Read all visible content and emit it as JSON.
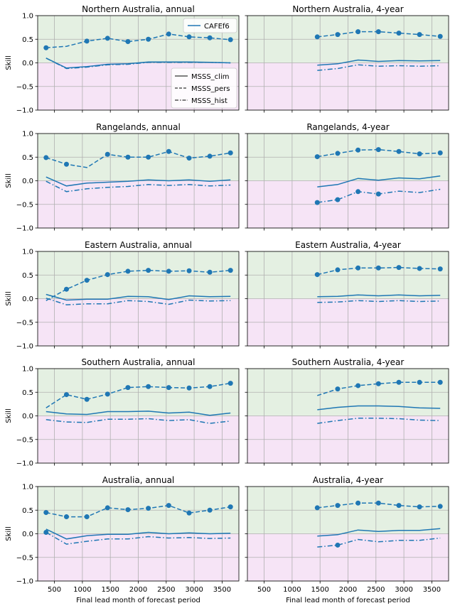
{
  "figure": {
    "xlabel": "Final lead month of forecast period",
    "ylabel": "Skill",
    "xlim": [
      200,
      3800
    ],
    "ylim": [
      -1.0,
      1.0
    ],
    "xticks": [
      "500",
      "1000",
      "1500",
      "2000",
      "2500",
      "3000",
      "3500"
    ],
    "xtick_values": [
      500,
      1000,
      1500,
      2000,
      2500,
      3000,
      3500
    ],
    "yticks": [
      "1.0",
      "0.5",
      "0.0",
      "−0.5",
      "−1.0"
    ],
    "ytick_values": [
      1.0,
      0.5,
      0.0,
      -0.5,
      -1.0
    ],
    "positive_shade": "#e4f0e2",
    "negative_shade": "#f6e4f6",
    "series_color": "#1f77b4",
    "grid": true,
    "legend_model": {
      "label": "CAFEf6",
      "placement": "upper right",
      "panel": 0
    },
    "legend_metrics": {
      "entries": [
        "MSSS_clim",
        "MSSS_pers",
        "MSSS_hist"
      ],
      "placement": "lower right",
      "panel": 0
    }
  },
  "chart_data": [
    {
      "type": "line",
      "title": "Northern Australia, annual",
      "x": [
        350,
        715,
        1080,
        1450,
        1815,
        2180,
        2545,
        2910,
        3280,
        3650
      ],
      "series": [
        {
          "name": "MSSS_clim",
          "style": "solid",
          "values": [
            0.1,
            -0.11,
            -0.08,
            -0.03,
            -0.02,
            0.02,
            0.02,
            0.02,
            0.01,
            0.0
          ]
        },
        {
          "name": "MSSS_pers",
          "style": "dashed",
          "values": [
            0.32,
            0.35,
            0.46,
            0.52,
            0.45,
            0.5,
            0.61,
            0.55,
            0.53,
            0.49
          ],
          "markers": [
            0,
            2,
            3,
            4,
            5,
            6,
            7,
            8,
            9
          ]
        },
        {
          "name": "MSSS_hist",
          "style": "dashdot",
          "values": [
            0.1,
            -0.12,
            -0.09,
            -0.04,
            -0.03,
            0.01,
            0.01,
            0.01,
            0.01,
            0.0
          ]
        }
      ]
    },
    {
      "type": "line",
      "title": "Northern Australia, 4-year",
      "x": [
        1450,
        1815,
        2180,
        2545,
        2910,
        3280,
        3650
      ],
      "series": [
        {
          "name": "MSSS_clim",
          "style": "solid",
          "values": [
            -0.05,
            -0.02,
            0.06,
            0.03,
            0.05,
            0.04,
            0.05
          ]
        },
        {
          "name": "MSSS_pers",
          "style": "dashed",
          "values": [
            0.55,
            0.6,
            0.66,
            0.66,
            0.63,
            0.6,
            0.56
          ],
          "markers": [
            0,
            1,
            2,
            3,
            4,
            5,
            6
          ]
        },
        {
          "name": "MSSS_hist",
          "style": "dashdot",
          "values": [
            -0.16,
            -0.12,
            -0.04,
            -0.07,
            -0.06,
            -0.07,
            -0.06
          ]
        }
      ]
    },
    {
      "type": "line",
      "title": "Rangelands, annual",
      "x": [
        350,
        715,
        1080,
        1450,
        1815,
        2180,
        2545,
        2910,
        3280,
        3650
      ],
      "series": [
        {
          "name": "MSSS_clim",
          "style": "solid",
          "values": [
            0.08,
            -0.11,
            -0.05,
            -0.03,
            -0.01,
            0.02,
            0.0,
            0.02,
            -0.01,
            0.02
          ]
        },
        {
          "name": "MSSS_pers",
          "style": "dashed",
          "values": [
            0.49,
            0.35,
            0.28,
            0.56,
            0.5,
            0.5,
            0.62,
            0.48,
            0.52,
            0.59
          ],
          "markers": [
            0,
            1,
            3,
            4,
            5,
            6,
            7,
            8,
            9
          ]
        },
        {
          "name": "MSSS_hist",
          "style": "dashdot",
          "values": [
            -0.01,
            -0.23,
            -0.17,
            -0.14,
            -0.12,
            -0.08,
            -0.1,
            -0.08,
            -0.11,
            -0.09
          ]
        }
      ]
    },
    {
      "type": "line",
      "title": "Rangelands, 4-year",
      "x": [
        1450,
        1815,
        2180,
        2545,
        2910,
        3280,
        3650
      ],
      "series": [
        {
          "name": "MSSS_clim",
          "style": "solid",
          "values": [
            -0.13,
            -0.08,
            0.05,
            0.01,
            0.06,
            0.04,
            0.1
          ]
        },
        {
          "name": "MSSS_pers",
          "style": "dashed",
          "values": [
            0.51,
            0.58,
            0.65,
            0.66,
            0.62,
            0.57,
            0.59
          ],
          "markers": [
            0,
            1,
            2,
            3,
            4,
            5,
            6
          ]
        },
        {
          "name": "MSSS_hist",
          "style": "dashdot",
          "values": [
            -0.46,
            -0.4,
            -0.23,
            -0.28,
            -0.22,
            -0.25,
            -0.18
          ],
          "markers": [
            0,
            1,
            2,
            3
          ]
        }
      ]
    },
    {
      "type": "line",
      "title": "Eastern Australia, annual",
      "x": [
        350,
        715,
        1080,
        1450,
        1815,
        2180,
        2545,
        2910,
        3280,
        3650
      ],
      "series": [
        {
          "name": "MSSS_clim",
          "style": "solid",
          "values": [
            0.09,
            -0.03,
            -0.01,
            -0.01,
            0.05,
            0.04,
            -0.02,
            0.06,
            0.04,
            0.05
          ]
        },
        {
          "name": "MSSS_pers",
          "style": "dashed",
          "values": [
            -0.04,
            0.2,
            0.39,
            0.51,
            0.58,
            0.6,
            0.58,
            0.59,
            0.56,
            0.6
          ],
          "markers": [
            1,
            2,
            3,
            4,
            5,
            6,
            7,
            8,
            9
          ]
        },
        {
          "name": "MSSS_hist",
          "style": "dashdot",
          "values": [
            0.01,
            -0.13,
            -0.11,
            -0.11,
            -0.04,
            -0.06,
            -0.12,
            -0.03,
            -0.05,
            -0.04
          ]
        }
      ]
    },
    {
      "type": "line",
      "title": "Eastern Australia, 4-year",
      "x": [
        1450,
        1815,
        2180,
        2545,
        2910,
        3280,
        3650
      ],
      "series": [
        {
          "name": "MSSS_clim",
          "style": "solid",
          "values": [
            0.04,
            0.05,
            0.08,
            0.06,
            0.08,
            0.06,
            0.07
          ]
        },
        {
          "name": "MSSS_pers",
          "style": "dashed",
          "values": [
            0.51,
            0.61,
            0.65,
            0.65,
            0.66,
            0.64,
            0.63
          ],
          "markers": [
            0,
            1,
            2,
            3,
            4,
            5,
            6
          ]
        },
        {
          "name": "MSSS_hist",
          "style": "dashdot",
          "values": [
            -0.08,
            -0.07,
            -0.04,
            -0.06,
            -0.04,
            -0.06,
            -0.05
          ]
        }
      ]
    },
    {
      "type": "line",
      "title": "Southern Australia, annual",
      "x": [
        350,
        715,
        1080,
        1450,
        1815,
        2180,
        2545,
        2910,
        3280,
        3650
      ],
      "series": [
        {
          "name": "MSSS_clim",
          "style": "solid",
          "values": [
            0.09,
            0.04,
            0.03,
            0.09,
            0.09,
            0.1,
            0.06,
            0.08,
            0.01,
            0.06
          ]
        },
        {
          "name": "MSSS_pers",
          "style": "dashed",
          "values": [
            0.17,
            0.45,
            0.35,
            0.46,
            0.6,
            0.62,
            0.6,
            0.59,
            0.62,
            0.69
          ],
          "markers": [
            1,
            2,
            3,
            4,
            5,
            6,
            7,
            8,
            9
          ]
        },
        {
          "name": "MSSS_hist",
          "style": "dashdot",
          "values": [
            -0.08,
            -0.13,
            -0.14,
            -0.07,
            -0.07,
            -0.06,
            -0.1,
            -0.08,
            -0.16,
            -0.11
          ]
        }
      ]
    },
    {
      "type": "line",
      "title": "Southern Australia, 4-year",
      "x": [
        1450,
        1815,
        2180,
        2545,
        2910,
        3280,
        3650
      ],
      "series": [
        {
          "name": "MSSS_clim",
          "style": "solid",
          "values": [
            0.13,
            0.18,
            0.21,
            0.21,
            0.2,
            0.17,
            0.16
          ]
        },
        {
          "name": "MSSS_pers",
          "style": "dashed",
          "values": [
            0.43,
            0.57,
            0.64,
            0.68,
            0.71,
            0.71,
            0.71
          ],
          "markers": [
            1,
            2,
            3,
            4,
            5,
            6
          ]
        },
        {
          "name": "MSSS_hist",
          "style": "dashdot",
          "values": [
            -0.16,
            -0.1,
            -0.05,
            -0.05,
            -0.06,
            -0.09,
            -0.1
          ]
        }
      ]
    },
    {
      "type": "line",
      "title": "Australia, annual",
      "x": [
        350,
        715,
        1080,
        1450,
        1815,
        2180,
        2545,
        2910,
        3280,
        3650
      ],
      "series": [
        {
          "name": "MSSS_clim",
          "style": "solid",
          "values": [
            0.1,
            -0.11,
            -0.04,
            -0.01,
            -0.01,
            0.03,
            0.0,
            0.02,
            0.0,
            0.01
          ]
        },
        {
          "name": "MSSS_pers",
          "style": "dashed",
          "values": [
            0.45,
            0.36,
            0.36,
            0.55,
            0.51,
            0.54,
            0.6,
            0.44,
            0.5,
            0.57
          ],
          "markers": [
            0,
            1,
            2,
            3,
            4,
            5,
            6,
            7,
            8,
            9
          ]
        },
        {
          "name": "MSSS_hist",
          "style": "dashdot",
          "values": [
            0.03,
            -0.22,
            -0.16,
            -0.11,
            -0.11,
            -0.06,
            -0.09,
            -0.08,
            -0.1,
            -0.09
          ],
          "markers": [
            0
          ]
        }
      ]
    },
    {
      "type": "line",
      "title": "Australia, 4-year",
      "x": [
        1450,
        1815,
        2180,
        2545,
        2910,
        3280,
        3650
      ],
      "series": [
        {
          "name": "MSSS_clim",
          "style": "solid",
          "values": [
            -0.05,
            -0.02,
            0.08,
            0.05,
            0.07,
            0.07,
            0.11
          ]
        },
        {
          "name": "MSSS_pers",
          "style": "dashed",
          "values": [
            0.55,
            0.6,
            0.65,
            0.65,
            0.6,
            0.57,
            0.58
          ],
          "markers": [
            0,
            1,
            2,
            3,
            4,
            5,
            6
          ]
        },
        {
          "name": "MSSS_hist",
          "style": "dashdot",
          "values": [
            -0.28,
            -0.24,
            -0.12,
            -0.17,
            -0.14,
            -0.14,
            -0.09
          ],
          "markers": [
            1
          ]
        }
      ]
    }
  ]
}
